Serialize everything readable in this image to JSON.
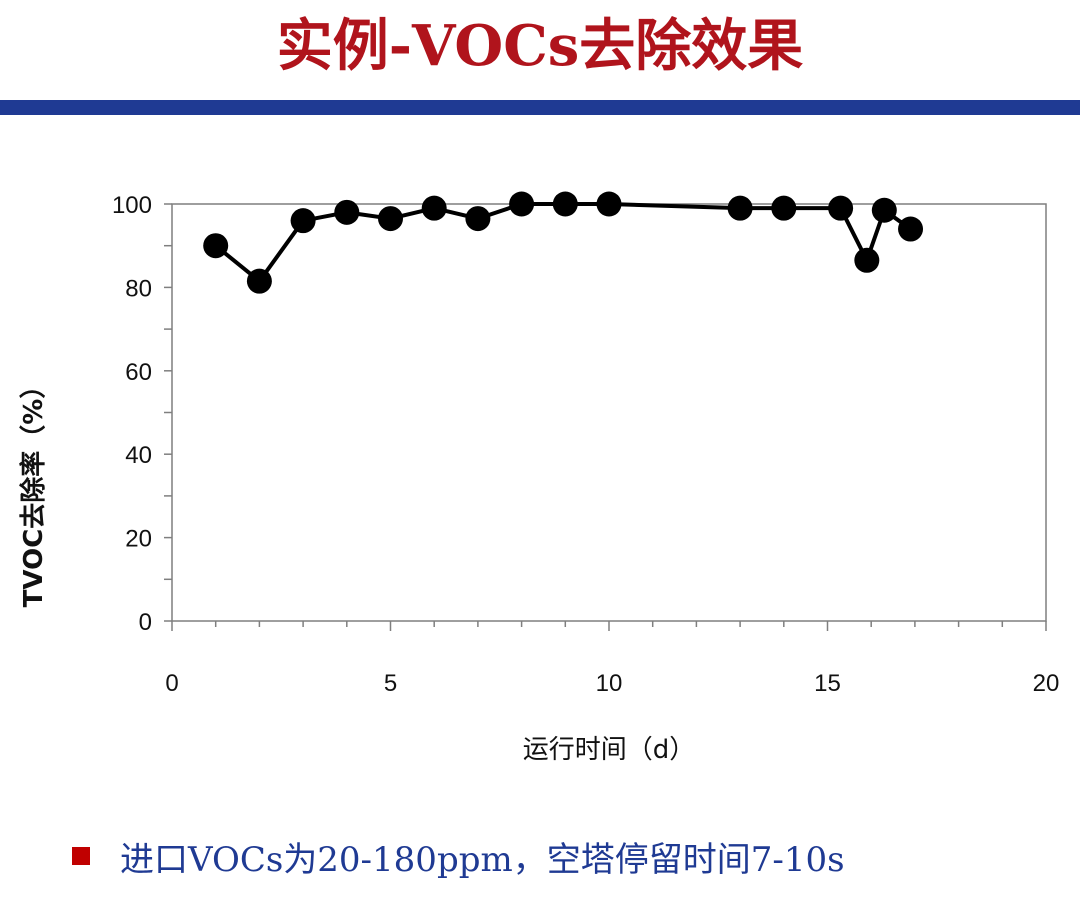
{
  "title": "实例-VOCs去除效果",
  "colors": {
    "title": "#b0141c",
    "bar": "#1f3a93",
    "note": "#1f3a93",
    "bullet": "#c00000",
    "series": "#000000"
  },
  "chart_data": {
    "type": "line",
    "xlabel": "运行时间（d）",
    "ylabel": "TVOC去除率（%）",
    "xlim": [
      0,
      20
    ],
    "ylim": [
      0,
      100
    ],
    "xticks": [
      0,
      5,
      10,
      15,
      20
    ],
    "yticks": [
      0,
      20,
      40,
      60,
      80,
      100
    ],
    "grid": false,
    "series": [
      {
        "x": [
          1,
          2,
          3,
          4,
          5,
          6,
          7,
          8,
          9,
          10,
          13,
          14,
          15.3,
          15.9,
          16.3,
          16.9
        ],
        "y": [
          90,
          81.5,
          96,
          98,
          96.5,
          99,
          96.5,
          100,
          100,
          100,
          99,
          99,
          99,
          86.5,
          98.5,
          94
        ]
      }
    ]
  },
  "note": {
    "bullet_icon": "square-bullet-icon",
    "text": "进口VOCs为20-180ppm，空塔停留时间7-10s"
  }
}
